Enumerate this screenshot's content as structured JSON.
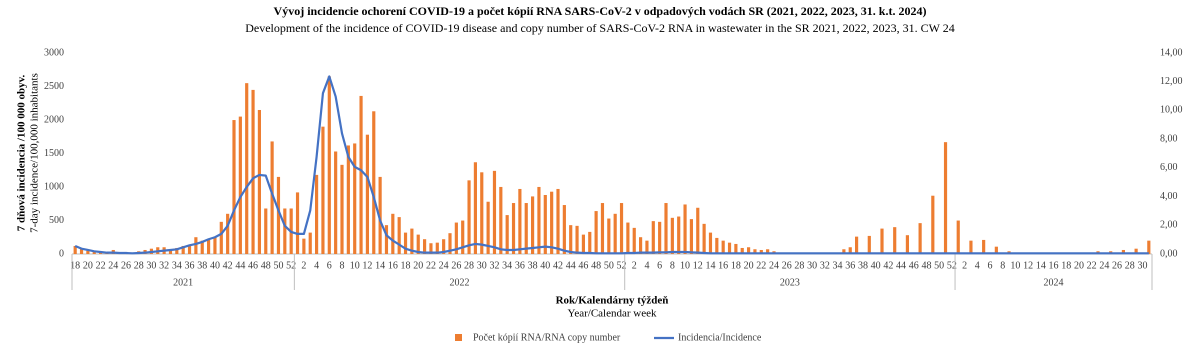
{
  "chart_data": {
    "type": "bar-line",
    "title": "Vývoj incidencie ochorení COVID-19 a počet kópií RNA  SARS-CoV-2 v odpadových vodách SR (2021, 2022, 2023, 31. k.t. 2024)",
    "subtitle": "Development of the incidence of COVID-19 disease and copy number of SARS-CoV-2 RNA  in wastewater in the SR 2021, 2022, 2023, 31. CW 24",
    "ylabel": "7 dňová incidencia /100 000 obyv.",
    "ylabel_en": "7-day incidence/100,000 inhabitants",
    "xlabel": "Rok/Kalendárny týždeň",
    "xlabel_en": "Year/Calendar week",
    "x_groups": [
      {
        "label": "2021",
        "count": 35
      },
      {
        "label": "2022",
        "count": 52
      },
      {
        "label": "2023",
        "count": 52
      },
      {
        "label": "2024",
        "count": 31
      }
    ],
    "categories": [
      "18",
      null,
      "20",
      null,
      "22",
      null,
      "24",
      null,
      "26",
      null,
      "28",
      null,
      "30",
      null,
      "32",
      null,
      "34",
      null,
      "36",
      null,
      "38",
      null,
      "40",
      null,
      "42",
      null,
      "44",
      null,
      "46",
      null,
      "48",
      null,
      "50",
      null,
      "52",
      null,
      "2",
      null,
      "4",
      null,
      "6",
      null,
      "8",
      null,
      "10",
      null,
      "12",
      null,
      "14",
      null,
      "16",
      null,
      "18",
      null,
      "20",
      null,
      "22",
      null,
      "24",
      null,
      "26",
      null,
      "28",
      null,
      "30",
      null,
      "32",
      null,
      "34",
      null,
      "36",
      null,
      "38",
      null,
      "40",
      null,
      "42",
      null,
      "44",
      null,
      "46",
      null,
      "48",
      null,
      "50",
      null,
      "52",
      null,
      "2",
      null,
      "4",
      null,
      "6",
      null,
      "8",
      null,
      "10",
      null,
      "12",
      null,
      "14",
      null,
      "16",
      null,
      "18",
      null,
      "20",
      null,
      "22",
      null,
      "24",
      null,
      "26",
      null,
      "28",
      null,
      "30",
      null,
      "32",
      null,
      "34",
      null,
      "36",
      null,
      "38",
      null,
      "40",
      null,
      "42",
      null,
      "44",
      null,
      "46",
      null,
      "48",
      null,
      "50",
      null,
      "52",
      null,
      "2",
      null,
      "4",
      null,
      "6",
      null,
      "8",
      null,
      "10",
      null,
      "12",
      null,
      "14",
      null,
      "16",
      null,
      "18",
      null,
      "20",
      null,
      "22",
      null,
      "24",
      null,
      "26",
      null,
      "28",
      null,
      "30",
      null
    ],
    "series": [
      {
        "name": "Počet kópií RNA/RNA copy number",
        "type": "bar",
        "axis": "y2",
        "color": "#ed7d31",
        "values": [
          0.56,
          0.37,
          0.23,
          0.19,
          0.14,
          0.09,
          0.28,
          0.09,
          0.14,
          0.09,
          0.19,
          0.28,
          0.37,
          0.47,
          0.47,
          0.28,
          0.42,
          0.56,
          0.61,
          1.17,
          0.93,
          1.03,
          1.21,
          2.24,
          2.8,
          9.33,
          9.57,
          11.9,
          11.43,
          10.03,
          3.17,
          7.84,
          5.37,
          3.17,
          3.17,
          4.29,
          1.07,
          1.49,
          5.51,
          8.87,
          12.37,
          7.14,
          6.21,
          7.56,
          7.7,
          11.01,
          8.31,
          9.94,
          5.37,
          2.01,
          2.8,
          2.57,
          1.49,
          1.77,
          1.35,
          1.03,
          0.75,
          0.79,
          1.03,
          1.45,
          2.19,
          2.33,
          5.13,
          6.39,
          5.69,
          3.64,
          5.79,
          4.67,
          2.71,
          3.55,
          4.53,
          3.55,
          4.01,
          4.67,
          4.11,
          4.34,
          4.53,
          3.41,
          2.01,
          1.96,
          1.35,
          1.54,
          2.99,
          3.55,
          2.47,
          2.8,
          3.55,
          2.19,
          1.82,
          1.17,
          0.93,
          2.29,
          2.24,
          3.55,
          2.52,
          2.61,
          3.45,
          2.43,
          3.22,
          2.1,
          1.49,
          1.12,
          0.93,
          0.79,
          0.7,
          0.42,
          0.47,
          0.33,
          0.28,
          0.33,
          0.19,
          0.09,
          0.09,
          0.05,
          0.05,
          0,
          0.05,
          0,
          0.05,
          0,
          0,
          0.33,
          0.47,
          1.21,
          0,
          1.26,
          0,
          1.77,
          0,
          1.87,
          0,
          1.31,
          0,
          2.15,
          0,
          4.06,
          0,
          7.79,
          0,
          2.33,
          0,
          0.93,
          0,
          0.98,
          0,
          0.51,
          0,
          0.19,
          0,
          0,
          0,
          0,
          0,
          0,
          0,
          0,
          0,
          0,
          0,
          0,
          0,
          0.19,
          0,
          0.19,
          0,
          0.28,
          0,
          0.37,
          0,
          0.93
        ]
      },
      {
        "name": "Incidencia/Incidence",
        "type": "line",
        "color": "#4472c4",
        "values": [
          120,
          80,
          60,
          40,
          30,
          20,
          20,
          15,
          15,
          10,
          15,
          20,
          30,
          40,
          50,
          60,
          70,
          100,
          130,
          150,
          180,
          220,
          250,
          300,
          420,
          650,
          850,
          1000,
          1130,
          1180,
          1170,
          900,
          650,
          420,
          330,
          300,
          300,
          650,
          1450,
          2400,
          2650,
          2350,
          1800,
          1450,
          1300,
          1250,
          1150,
          850,
          500,
          280,
          200,
          140,
          80,
          50,
          30,
          20,
          20,
          20,
          30,
          50,
          70,
          100,
          130,
          150,
          140,
          120,
          100,
          70,
          60,
          60,
          70,
          80,
          90,
          100,
          110,
          100,
          80,
          50,
          30,
          20,
          15,
          15,
          10,
          10,
          10,
          10,
          10,
          15,
          15,
          20,
          20,
          20,
          25,
          25,
          30,
          30,
          30,
          25,
          20,
          15,
          10,
          10,
          10,
          10,
          10,
          10,
          10,
          10,
          10,
          10,
          10,
          10,
          10,
          10,
          10,
          10,
          10,
          10,
          10,
          10,
          10,
          10,
          10,
          10,
          10,
          10,
          10,
          10,
          10,
          10,
          10,
          10,
          10,
          10,
          10,
          10,
          10,
          10,
          10,
          10,
          10,
          10,
          10,
          10,
          10,
          10,
          10,
          10,
          10,
          10,
          10,
          10,
          10,
          10,
          10,
          10,
          10,
          10,
          10,
          10,
          10,
          10,
          10,
          10,
          10,
          10,
          10,
          10,
          10,
          10
        ]
      }
    ],
    "ylim": [
      0,
      3000
    ],
    "yticks": [
      0,
      500,
      1000,
      1500,
      2000,
      2500,
      3000
    ],
    "y2lim": [
      0,
      14
    ],
    "y2ticks": [
      {
        "value": 0,
        "label": "0,00"
      },
      {
        "value": 2,
        "label": "2,00"
      },
      {
        "value": 4,
        "label": "4,00"
      },
      {
        "value": 6,
        "label": "6,00"
      },
      {
        "value": 8,
        "label": "8,00"
      },
      {
        "value": 10,
        "label": "10,00"
      },
      {
        "value": 12,
        "label": "12,00"
      },
      {
        "value": 14,
        "label": "14,00"
      }
    ],
    "grid": false,
    "legend": "bottom"
  }
}
